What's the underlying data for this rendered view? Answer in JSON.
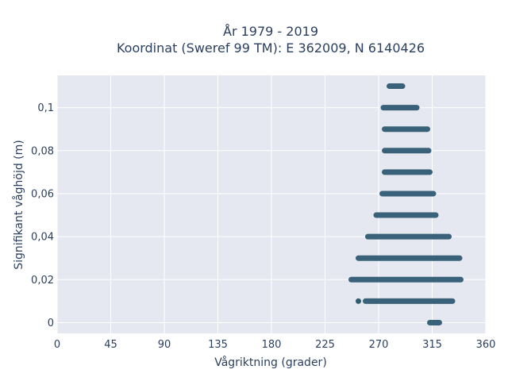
{
  "chart_data": {
    "type": "scatter",
    "title_line1": "År 1979 - 2019",
    "title_line2": "Koordinat (Sweref 99 TM): E 362009, N 6140426",
    "xlabel": "Vågriktning (grader)",
    "ylabel": "Signifikant våghöjd (m)",
    "xlim": [
      0,
      360
    ],
    "ylim": [
      -0.005,
      0.115
    ],
    "x_ticks": [
      0,
      45,
      90,
      135,
      180,
      225,
      270,
      315,
      360
    ],
    "x_tick_labels": [
      "0",
      "45",
      "90",
      "135",
      "180",
      "225",
      "270",
      "315",
      "360"
    ],
    "y_ticks": [
      0,
      0.02,
      0.04,
      0.06,
      0.08,
      0.1
    ],
    "y_tick_labels": [
      "0",
      "0,02",
      "0,04",
      "0,06",
      "0,08",
      "0,1"
    ],
    "grid": true,
    "colors": {
      "background": "#e5e8f0",
      "grid": "#ffffff",
      "marker": "#2f5b73",
      "text": "#2a3f5f"
    },
    "bands": [
      {
        "y": 0.0,
        "x_min": 313,
        "x_max": 321
      },
      {
        "y": 0.01,
        "x_min": 259,
        "x_max": 332
      },
      {
        "y": 0.02,
        "x_min": 247,
        "x_max": 339
      },
      {
        "y": 0.03,
        "x_min": 253,
        "x_max": 338
      },
      {
        "y": 0.04,
        "x_min": 261,
        "x_max": 329
      },
      {
        "y": 0.05,
        "x_min": 268,
        "x_max": 318
      },
      {
        "y": 0.06,
        "x_min": 273,
        "x_max": 316
      },
      {
        "y": 0.07,
        "x_min": 275,
        "x_max": 313
      },
      {
        "y": 0.08,
        "x_min": 275,
        "x_max": 312
      },
      {
        "y": 0.09,
        "x_min": 275,
        "x_max": 311
      },
      {
        "y": 0.1,
        "x_min": 274,
        "x_max": 302
      },
      {
        "y": 0.11,
        "x_min": 279,
        "x_max": 290
      }
    ],
    "outliers": [
      {
        "x": 253,
        "y": 0.01
      }
    ]
  }
}
